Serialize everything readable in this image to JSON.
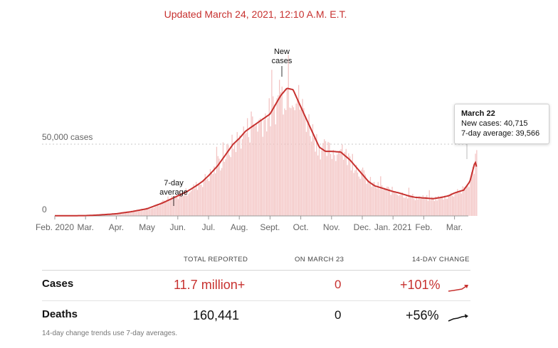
{
  "header": {
    "updated": "Updated March 24, 2021, 12:10 A.M. E.T."
  },
  "chart_data": {
    "type": "bar",
    "title": "",
    "ylabel": "",
    "ylim": [
      0,
      100000
    ],
    "yticks": [
      {
        "value": 0,
        "label": "0"
      },
      {
        "value": 50000,
        "label": "50,000 cases"
      }
    ],
    "xticks": [
      "Feb. 2020",
      "Mar.",
      "Apr.",
      "May",
      "Jun.",
      "Jul.",
      "Aug.",
      "Sept.",
      "Oct.",
      "Nov.",
      "Dec.",
      "Jan. 2021",
      "Feb.",
      "Mar."
    ],
    "series": [
      {
        "name": "New cases",
        "kind": "bars",
        "color": "#f3c5c4"
      },
      {
        "name": "7-day average",
        "kind": "line",
        "color": "#c7312f"
      }
    ],
    "seven_day_average": {
      "month_index": [
        0,
        1.0,
        1.4,
        2.0,
        2.5,
        3.0,
        3.5,
        4.0,
        4.3,
        4.6,
        4.8,
        5.0,
        5.3,
        5.6,
        5.8,
        6.0,
        6.2,
        6.6,
        7.0,
        7.35,
        7.55,
        7.75,
        8.0,
        8.3,
        8.6,
        8.8,
        9.0,
        9.3,
        9.6,
        9.8,
        10.0,
        10.2,
        10.4,
        10.7,
        11.0,
        11.2,
        11.5,
        11.7,
        12.0,
        12.3,
        12.6,
        12.8,
        13.0,
        13.3,
        13.5,
        13.67,
        13.72
      ],
      "values": [
        100,
        200,
        600,
        1500,
        3000,
        5000,
        9000,
        14000,
        17000,
        21000,
        24000,
        28000,
        35000,
        44000,
        50000,
        54000,
        59000,
        65000,
        71000,
        84000,
        89000,
        88000,
        76000,
        62000,
        48000,
        45000,
        45000,
        44500,
        39000,
        34000,
        29000,
        24000,
        21000,
        19000,
        17000,
        16000,
        14000,
        13000,
        12500,
        12000,
        13000,
        14000,
        16000,
        18000,
        24000,
        38000,
        34000
      ]
    },
    "annotations": [
      {
        "label_lines": [
          "New",
          "cases"
        ],
        "at": "Sept."
      },
      {
        "label_lines": [
          "7-day",
          "average"
        ],
        "at": "Jun."
      }
    ],
    "tooltip": {
      "date": "March 22",
      "new_cases": 40715,
      "seven_day_average": 39566
    }
  },
  "tooltip": {
    "date": "March 22",
    "line1": "New cases: 40,715",
    "line2": "7-day average: 39,566"
  },
  "stats": {
    "headers": {
      "total": "TOTAL REPORTED",
      "on_date": "ON MARCH 23",
      "change": "14-DAY CHANGE"
    },
    "rows": [
      {
        "label": "Cases",
        "total": "11.7 million+",
        "on_date": "0",
        "change": "+101%"
      },
      {
        "label": "Deaths",
        "total": "160,441",
        "on_date": "0",
        "change": "+56%"
      }
    ],
    "footnote": "14-day change trends use 7-day averages."
  },
  "colors": {
    "accent": "#c7312f",
    "bars": "#f3c5c4",
    "text": "#121212"
  }
}
